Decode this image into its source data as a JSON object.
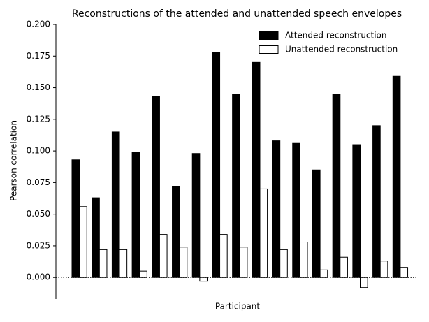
{
  "chart_data": {
    "type": "bar",
    "title": "Reconstructions of the attended and unattended speech envelopes",
    "xlabel": "Participant",
    "ylabel": "Pearson correlation",
    "categories": [
      null,
      null,
      null,
      null,
      null,
      null,
      null,
      null,
      null,
      null,
      null,
      null,
      null,
      null,
      null,
      null,
      null
    ],
    "series": [
      {
        "name": "Attended reconstruction",
        "color": "#000000",
        "values": [
          0.093,
          0.063,
          0.115,
          0.099,
          0.143,
          0.072,
          0.098,
          0.178,
          0.145,
          0.17,
          0.108,
          0.106,
          0.085,
          0.145,
          0.105,
          0.12,
          0.159
        ]
      },
      {
        "name": "Unattended reconstruction",
        "color": "#ffffff",
        "values": [
          0.056,
          0.022,
          0.022,
          0.005,
          0.034,
          0.024,
          -0.003,
          0.034,
          0.024,
          0.07,
          0.022,
          0.028,
          0.006,
          0.016,
          -0.008,
          0.013,
          0.008
        ]
      }
    ],
    "ylim": [
      -0.017,
      0.2
    ],
    "yticks": [
      {
        "value": 0.0,
        "label": "0.000"
      },
      {
        "value": 0.025,
        "label": "0.025"
      },
      {
        "value": 0.05,
        "label": "0.050"
      },
      {
        "value": 0.075,
        "label": "0.075"
      },
      {
        "value": 0.1,
        "label": "0.100"
      },
      {
        "value": 0.125,
        "label": "0.125"
      },
      {
        "value": 0.15,
        "label": "0.150"
      },
      {
        "value": 0.175,
        "label": "0.175"
      },
      {
        "value": 0.2,
        "label": "0.200"
      }
    ],
    "legend": "upper right",
    "grid": false
  }
}
